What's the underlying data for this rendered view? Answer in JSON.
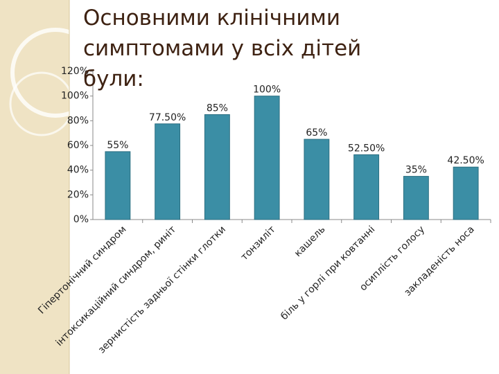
{
  "chart_data": {
    "type": "bar",
    "title": "Основними клінічними симптомами у всіх дітей були:",
    "categories": [
      "Гіпертонічний синдром",
      "інтоксикаційний синдром, риніт",
      "зернистість задньої стінки глотки",
      "тонзиліт",
      "кашель",
      "біль у горлі при ковтанні",
      "осиплість голосу",
      "закладеність носа"
    ],
    "values": [
      55,
      77.5,
      85,
      100,
      65,
      52.5,
      35,
      42.5
    ],
    "value_labels": [
      "55%",
      "77.50%",
      "85%",
      "100%",
      "65%",
      "52.50%",
      "35%",
      "42.50%"
    ],
    "color": "#3b8ea5",
    "ylim": [
      0,
      120
    ],
    "yticks": [
      {
        "value": 0,
        "label": "0%"
      },
      {
        "value": 20,
        "label": "20%"
      },
      {
        "value": 40,
        "label": "40%"
      },
      {
        "value": 60,
        "label": "60%"
      },
      {
        "value": 80,
        "label": "80%"
      },
      {
        "value": 100,
        "label": "100%"
      },
      {
        "value": 120,
        "label": "120%"
      }
    ],
    "grid": false
  }
}
